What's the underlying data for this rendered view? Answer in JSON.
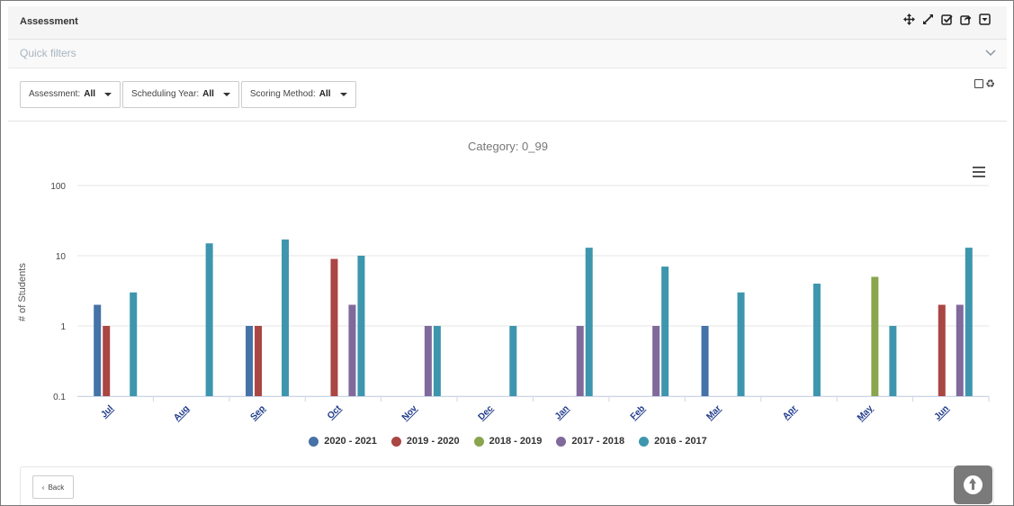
{
  "panel": {
    "title": "Assessment"
  },
  "tools": [
    "move-icon",
    "expand-icon",
    "checkbox-icon",
    "share-icon",
    "dropdown-icon"
  ],
  "quick_filters": {
    "label": "Quick filters"
  },
  "filters": [
    {
      "label": "Assessment:",
      "value": "All"
    },
    {
      "label": "Scheduling Year:",
      "value": "All"
    },
    {
      "label": "Scoring Method:",
      "value": "All"
    }
  ],
  "back_label": "Back",
  "chart_data": {
    "type": "bar",
    "title": "Category: 0_99",
    "ylabel": "# of Students",
    "xlabel": "",
    "yscale": "log",
    "ylim": [
      0.1,
      100
    ],
    "yticks": [
      "0.1",
      "1",
      "10",
      "100"
    ],
    "ytick_values": [
      0.1,
      1,
      10,
      100
    ],
    "categories": [
      "Jul",
      "Aug",
      "Sep",
      "Oct",
      "Nov",
      "Dec",
      "Jan",
      "Feb",
      "Mar",
      "Apr",
      "May",
      "Jun"
    ],
    "series": [
      {
        "name": "2020 - 2021",
        "color": "#4572a7",
        "values": [
          2,
          null,
          1,
          null,
          null,
          null,
          null,
          null,
          1,
          null,
          null,
          null
        ]
      },
      {
        "name": "2019 - 2020",
        "color": "#aa4643",
        "values": [
          1,
          null,
          1,
          9,
          null,
          null,
          null,
          null,
          null,
          null,
          null,
          2
        ]
      },
      {
        "name": "2018 - 2019",
        "color": "#89a54e",
        "values": [
          null,
          null,
          null,
          null,
          null,
          null,
          null,
          null,
          null,
          null,
          5,
          null
        ]
      },
      {
        "name": "2017 - 2018",
        "color": "#80699b",
        "values": [
          null,
          null,
          null,
          2,
          1,
          null,
          1,
          1,
          null,
          null,
          null,
          2
        ]
      },
      {
        "name": "2016 - 2017",
        "color": "#3d96ae",
        "values": [
          3,
          15,
          17,
          10,
          1,
          1,
          13,
          7,
          3,
          4,
          1,
          13
        ]
      }
    ],
    "legend_position": "bottom",
    "grid": true
  }
}
